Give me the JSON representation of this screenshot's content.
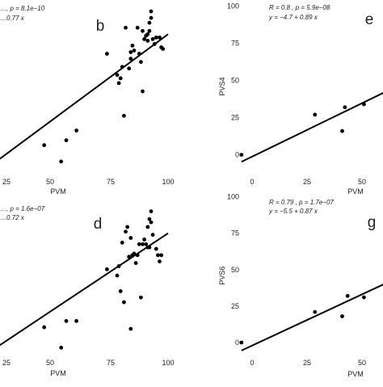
{
  "chart_data": [
    {
      "type": "scatter",
      "panel_label": "b",
      "xlabel": "PVM",
      "ylabel": "",
      "xlim": [
        0,
        100
      ],
      "ylim": [
        0,
        100
      ],
      "x_tick_labels": [
        "25",
        "50",
        "75",
        "100"
      ],
      "y_tick_labels": [],
      "stats": [
        "…, p = 8.1e−10",
        "…0.77 x"
      ],
      "fit": {
        "intercept": 6,
        "slope": 0.77
      },
      "points": [
        [
          27,
          15
        ],
        [
          37,
          5
        ],
        [
          40,
          18
        ],
        [
          46,
          24
        ],
        [
          64,
          71
        ],
        [
          70,
          58
        ],
        [
          71,
          53
        ],
        [
          72,
          56
        ],
        [
          73,
          63
        ],
        [
          74,
          33
        ],
        [
          75,
          87
        ],
        [
          77,
          62
        ],
        [
          78,
          72
        ],
        [
          78,
          68
        ],
        [
          79,
          76
        ],
        [
          80,
          73
        ],
        [
          82,
          87
        ],
        [
          83,
          71
        ],
        [
          84,
          66
        ],
        [
          85,
          48
        ],
        [
          85,
          85
        ],
        [
          86,
          80
        ],
        [
          87,
          82
        ],
        [
          88,
          79
        ],
        [
          88,
          83
        ],
        [
          89,
          90
        ],
        [
          89,
          85
        ],
        [
          90,
          93
        ],
        [
          90,
          97
        ],
        [
          91,
          80
        ],
        [
          92,
          77
        ],
        [
          93,
          81
        ],
        [
          95,
          81
        ],
        [
          96,
          75
        ],
        [
          97,
          74
        ]
      ]
    },
    {
      "type": "scatter",
      "panel_label": "d",
      "xlabel": "PVM",
      "ylabel": "",
      "xlim": [
        0,
        100
      ],
      "ylim": [
        0,
        100
      ],
      "x_tick_labels": [
        "25",
        "50",
        "75",
        "100"
      ],
      "y_tick_labels": [],
      "stats": [
        "…, p = 1.6e−07",
        "…0.72 x"
      ],
      "fit": {
        "intercept": 6,
        "slope": 0.72
      },
      "points": [
        [
          27,
          18
        ],
        [
          37,
          5
        ],
        [
          40,
          22
        ],
        [
          46,
          22
        ],
        [
          64,
          55
        ],
        [
          70,
          51
        ],
        [
          71,
          57
        ],
        [
          72,
          41
        ],
        [
          73,
          72
        ],
        [
          74,
          34
        ],
        [
          75,
          79
        ],
        [
          76,
          82
        ],
        [
          77,
          63
        ],
        [
          78,
          17
        ],
        [
          78,
          75
        ],
        [
          79,
          64
        ],
        [
          80,
          65
        ],
        [
          81,
          59
        ],
        [
          82,
          64
        ],
        [
          83,
          71
        ],
        [
          84,
          37
        ],
        [
          85,
          71
        ],
        [
          86,
          74
        ],
        [
          87,
          71
        ],
        [
          88,
          69
        ],
        [
          88,
          82
        ],
        [
          89,
          87
        ],
        [
          89,
          69
        ],
        [
          90,
          92
        ],
        [
          90,
          85
        ],
        [
          91,
          77
        ],
        [
          93,
          68
        ],
        [
          94,
          64
        ],
        [
          95,
          60
        ],
        [
          96,
          64
        ]
      ]
    },
    {
      "type": "scatter",
      "panel_label": "e",
      "xlabel": "PVM",
      "ylabel": "PVS4",
      "xlim": [
        -5,
        52
      ],
      "ylim": [
        -10,
        102
      ],
      "x_tick_labels": [
        "0",
        "25",
        "50"
      ],
      "y_tick_labels": [
        "0",
        "25",
        "50",
        "75",
        "100"
      ],
      "stats": [
        "R = 0.8 , p = 5.9e−08",
        "y = −4.7 + 0.89 x"
      ],
      "fit": {
        "intercept": -4.7,
        "slope": 0.89
      },
      "points": [
        [
          0,
          0
        ],
        [
          27,
          27
        ],
        [
          37,
          16
        ],
        [
          38,
          32
        ],
        [
          45,
          34
        ]
      ]
    },
    {
      "type": "scatter",
      "panel_label": "g",
      "xlabel": "PVM",
      "ylabel": "PVS6",
      "xlim": [
        -5,
        52
      ],
      "ylim": [
        -10,
        102
      ],
      "x_tick_labels": [
        "0",
        "25",
        "50"
      ],
      "y_tick_labels": [
        "0",
        "25",
        "50",
        "75",
        "100"
      ],
      "stats": [
        "R = 0.79 , p = 1.7e−07",
        "y = −5.5 + 0.87 x"
      ],
      "fit": {
        "intercept": -5.5,
        "slope": 0.87
      },
      "points": [
        [
          0,
          0
        ],
        [
          27,
          21
        ],
        [
          37,
          18
        ],
        [
          39,
          32
        ],
        [
          45,
          31
        ]
      ]
    }
  ]
}
